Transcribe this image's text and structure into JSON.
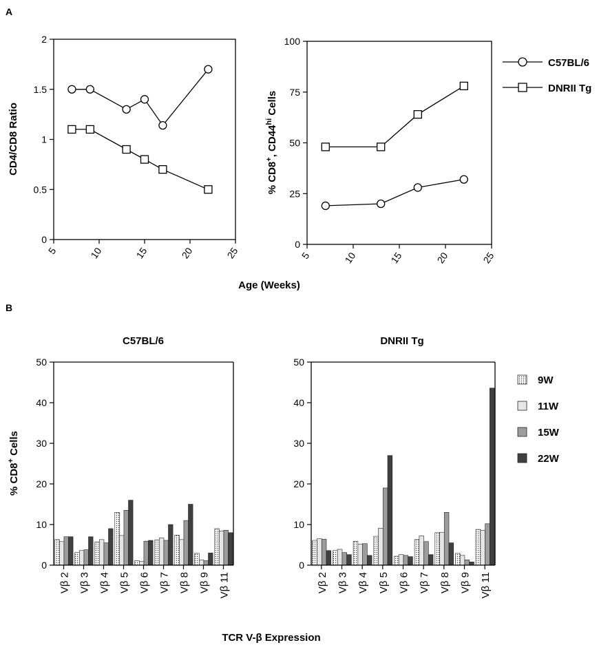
{
  "panels": {
    "a": "A",
    "b": "B"
  },
  "shared_xlabel_top": "Age (Weeks)",
  "shared_xlabel_bottom": "TCR V-β Expression",
  "legend_top": [
    {
      "label": "C57BL/6",
      "marker": "circle"
    },
    {
      "label": "DNRII Tg",
      "marker": "square"
    }
  ],
  "legend_bottom": [
    {
      "label": "9W",
      "color": "#ffffff",
      "pattern": "dots"
    },
    {
      "label": "11W",
      "color": "#e6e6e6",
      "pattern": "none"
    },
    {
      "label": "15W",
      "color": "#9c9c9c",
      "pattern": "none"
    },
    {
      "label": "22W",
      "color": "#404040",
      "pattern": "none"
    }
  ],
  "chart_data": [
    {
      "type": "line",
      "ylabel": "CD4/CD8 Ratio",
      "xlim": [
        5,
        25
      ],
      "ylim": [
        0,
        2
      ],
      "xticks": [
        "5",
        "10",
        "15",
        "20",
        "25"
      ],
      "yticks": [
        "0",
        "0.5",
        "1",
        "1.5",
        "2"
      ],
      "series": [
        {
          "name": "C57BL/6",
          "marker": "circle",
          "x": [
            7,
            9,
            13,
            15,
            17,
            22
          ],
          "y": [
            1.5,
            1.5,
            1.3,
            1.4,
            1.14,
            1.7
          ]
        },
        {
          "name": "DNRII Tg",
          "marker": "square",
          "x": [
            7,
            9,
            13,
            15,
            17,
            22
          ],
          "y": [
            1.1,
            1.1,
            0.9,
            0.8,
            0.7,
            0.5
          ]
        }
      ]
    },
    {
      "type": "line",
      "ylabel_parts": [
        "% CD8",
        "+",
        ", CD44",
        "hi",
        " Cells"
      ],
      "xlim": [
        5,
        25
      ],
      "ylim": [
        0,
        100
      ],
      "xticks": [
        "5",
        "10",
        "15",
        "20",
        "25"
      ],
      "yticks": [
        "0",
        "25",
        "50",
        "75",
        "100"
      ],
      "series": [
        {
          "name": "C57BL/6",
          "marker": "circle",
          "x": [
            7,
            13,
            17,
            22
          ],
          "y": [
            19,
            20,
            28,
            32
          ]
        },
        {
          "name": "DNRII Tg",
          "marker": "square",
          "x": [
            7,
            13,
            17,
            22
          ],
          "y": [
            48,
            48,
            64,
            78
          ]
        }
      ]
    },
    {
      "type": "bar",
      "title": "C57BL/6",
      "ylabel_parts": [
        "% CD8",
        "+",
        " Cells"
      ],
      "ylim": [
        0,
        50
      ],
      "yticks": [
        "0",
        "10",
        "20",
        "30",
        "40",
        "50"
      ],
      "categories": [
        "Vβ 2",
        "Vβ 3",
        "Vβ 4",
        "Vβ 5",
        "Vβ 6",
        "Vβ 7",
        "Vβ 8",
        "Vβ 9",
        "Vβ 11"
      ],
      "series": [
        {
          "name": "9W",
          "values": [
            6.3,
            3.1,
            5.7,
            13.0,
            1.1,
            6.2,
            7.4,
            2.9,
            9.0
          ]
        },
        {
          "name": "11W",
          "values": [
            5.8,
            3.6,
            6.3,
            7.3,
            0.9,
            6.7,
            6.3,
            1.3,
            8.4
          ]
        },
        {
          "name": "15W",
          "values": [
            7.0,
            3.8,
            5.5,
            13.5,
            5.9,
            6.1,
            11.0,
            1.1,
            8.6
          ]
        },
        {
          "name": "22W",
          "values": [
            7.0,
            7.0,
            9.0,
            16.0,
            6.1,
            10.0,
            15.0,
            3.0,
            8.0
          ]
        }
      ]
    },
    {
      "type": "bar",
      "title": "DNRII Tg",
      "ylim": [
        0,
        50
      ],
      "yticks": [
        "0",
        "10",
        "20",
        "30",
        "40",
        "50"
      ],
      "categories": [
        "Vβ 2",
        "Vβ 3",
        "Vβ 4",
        "Vβ 5",
        "Vβ 6",
        "Vβ 7",
        "Vβ 8",
        "Vβ 9",
        "Vβ 11"
      ],
      "series": [
        {
          "name": "9W",
          "values": [
            6.1,
            3.6,
            5.9,
            7.1,
            2.2,
            6.3,
            8.0,
            2.9,
            8.8
          ]
        },
        {
          "name": "11W",
          "values": [
            6.5,
            3.9,
            5.2,
            9.1,
            2.6,
            7.2,
            8.1,
            2.4,
            8.6
          ]
        },
        {
          "name": "15W",
          "values": [
            6.4,
            3.1,
            5.3,
            19.0,
            2.4,
            5.8,
            13.0,
            1.3,
            10.2
          ]
        },
        {
          "name": "22W",
          "values": [
            3.6,
            2.6,
            2.4,
            27.0,
            2.1,
            2.6,
            5.5,
            0.8,
            43.6
          ]
        }
      ]
    }
  ]
}
